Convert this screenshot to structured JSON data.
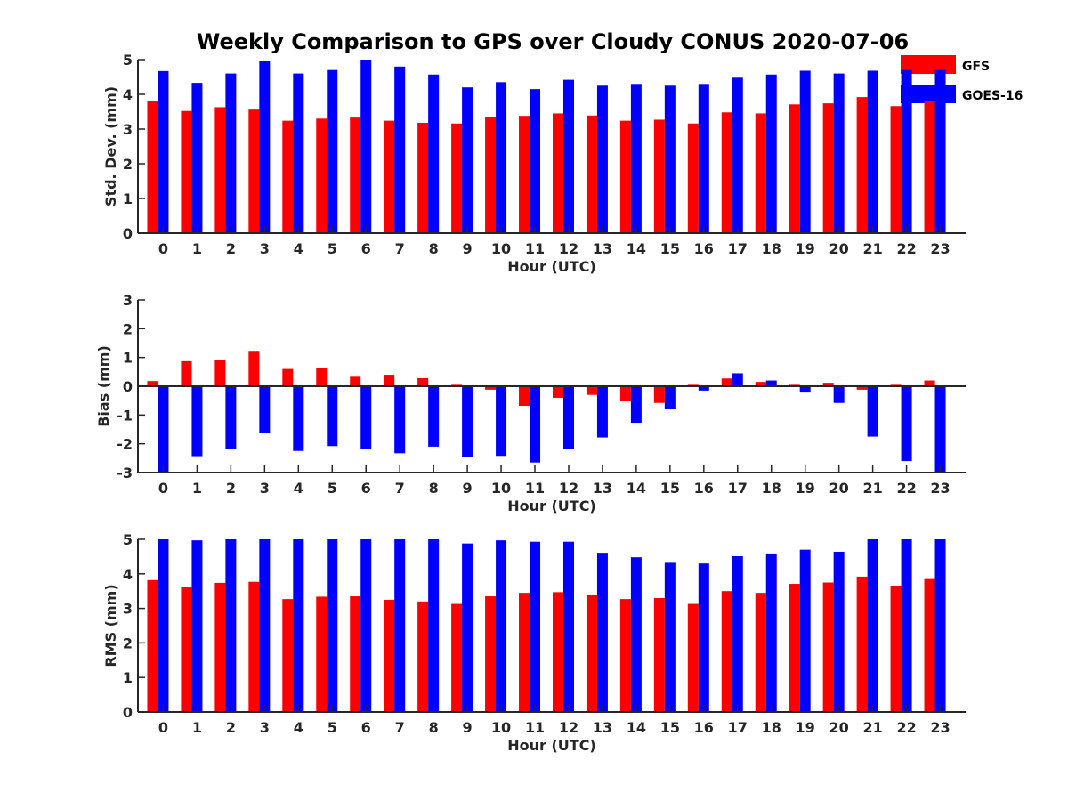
{
  "title": "Weekly Comparison to GPS over Cloudy CONUS 2020-07-06",
  "legend": [
    {
      "name": "GFS",
      "color": "#ff0000"
    },
    {
      "name": "GOES-16",
      "color": "#0000ff"
    }
  ],
  "chart_data": [
    {
      "type": "bar",
      "xlabel": "Hour (UTC)",
      "ylabel": "Std. Dev. (mm)",
      "ylim": [
        0,
        5
      ],
      "yticks": [
        0,
        1,
        2,
        3,
        4,
        5
      ],
      "categories": [
        "0",
        "1",
        "2",
        "3",
        "4",
        "5",
        "6",
        "7",
        "8",
        "9",
        "10",
        "11",
        "12",
        "13",
        "14",
        "15",
        "16",
        "17",
        "18",
        "19",
        "20",
        "21",
        "22",
        "23"
      ],
      "series": [
        {
          "name": "GFS",
          "values": [
            3.82,
            3.52,
            3.63,
            3.56,
            3.24,
            3.3,
            3.33,
            3.24,
            3.18,
            3.16,
            3.36,
            3.38,
            3.45,
            3.39,
            3.24,
            3.27,
            3.16,
            3.48,
            3.45,
            3.71,
            3.74,
            3.92,
            3.66,
            3.8
          ]
        },
        {
          "name": "GOES-16",
          "values": [
            4.67,
            4.33,
            4.6,
            4.95,
            4.6,
            4.7,
            5.0,
            4.8,
            4.57,
            4.2,
            4.35,
            4.15,
            4.42,
            4.25,
            4.3,
            4.25,
            4.3,
            4.48,
            4.57,
            4.68,
            4.6,
            4.68,
            4.7,
            4.7
          ]
        }
      ]
    },
    {
      "type": "bar",
      "xlabel": "Hour (UTC)",
      "ylabel": "Bias (mm)",
      "ylim": [
        -3,
        3
      ],
      "yticks": [
        -3,
        -2,
        -1,
        0,
        1,
        2,
        3
      ],
      "zero_line": true,
      "categories": [
        "0",
        "1",
        "2",
        "3",
        "4",
        "5",
        "6",
        "7",
        "8",
        "9",
        "10",
        "11",
        "12",
        "13",
        "14",
        "15",
        "16",
        "17",
        "18",
        "19",
        "20",
        "21",
        "22",
        "23"
      ],
      "series": [
        {
          "name": "GFS",
          "values": [
            0.18,
            0.87,
            0.9,
            1.23,
            0.6,
            0.65,
            0.33,
            0.4,
            0.28,
            0.05,
            -0.12,
            -0.68,
            -0.4,
            -0.3,
            -0.52,
            -0.58,
            0.05,
            0.27,
            0.15,
            0.05,
            0.12,
            -0.12,
            0.05,
            0.2
          ]
        },
        {
          "name": "GOES-16",
          "values": [
            -3.0,
            -2.43,
            -2.18,
            -1.63,
            -2.25,
            -2.08,
            -2.18,
            -2.33,
            -2.1,
            -2.45,
            -2.42,
            -2.65,
            -2.18,
            -1.78,
            -1.27,
            -0.8,
            -0.15,
            0.45,
            0.2,
            -0.22,
            -0.58,
            -1.75,
            -2.6,
            -3.0
          ]
        }
      ]
    },
    {
      "type": "bar",
      "xlabel": "Hour (UTC)",
      "ylabel": "RMS (mm)",
      "ylim": [
        0,
        5
      ],
      "yticks": [
        0,
        1,
        2,
        3,
        4,
        5
      ],
      "categories": [
        "0",
        "1",
        "2",
        "3",
        "4",
        "5",
        "6",
        "7",
        "8",
        "9",
        "10",
        "11",
        "12",
        "13",
        "14",
        "15",
        "16",
        "17",
        "18",
        "19",
        "20",
        "21",
        "22",
        "23"
      ],
      "series": [
        {
          "name": "GFS",
          "values": [
            3.82,
            3.63,
            3.74,
            3.77,
            3.27,
            3.34,
            3.35,
            3.25,
            3.2,
            3.13,
            3.35,
            3.45,
            3.47,
            3.4,
            3.27,
            3.3,
            3.13,
            3.5,
            3.45,
            3.71,
            3.75,
            3.92,
            3.66,
            3.85
          ]
        },
        {
          "name": "GOES-16",
          "values": [
            5.0,
            4.97,
            5.0,
            5.0,
            5.0,
            5.0,
            5.0,
            5.0,
            5.0,
            4.88,
            4.97,
            4.93,
            4.93,
            4.61,
            4.48,
            4.32,
            4.3,
            4.51,
            4.59,
            4.7,
            4.64,
            5.0,
            5.0,
            5.0
          ]
        }
      ]
    }
  ]
}
